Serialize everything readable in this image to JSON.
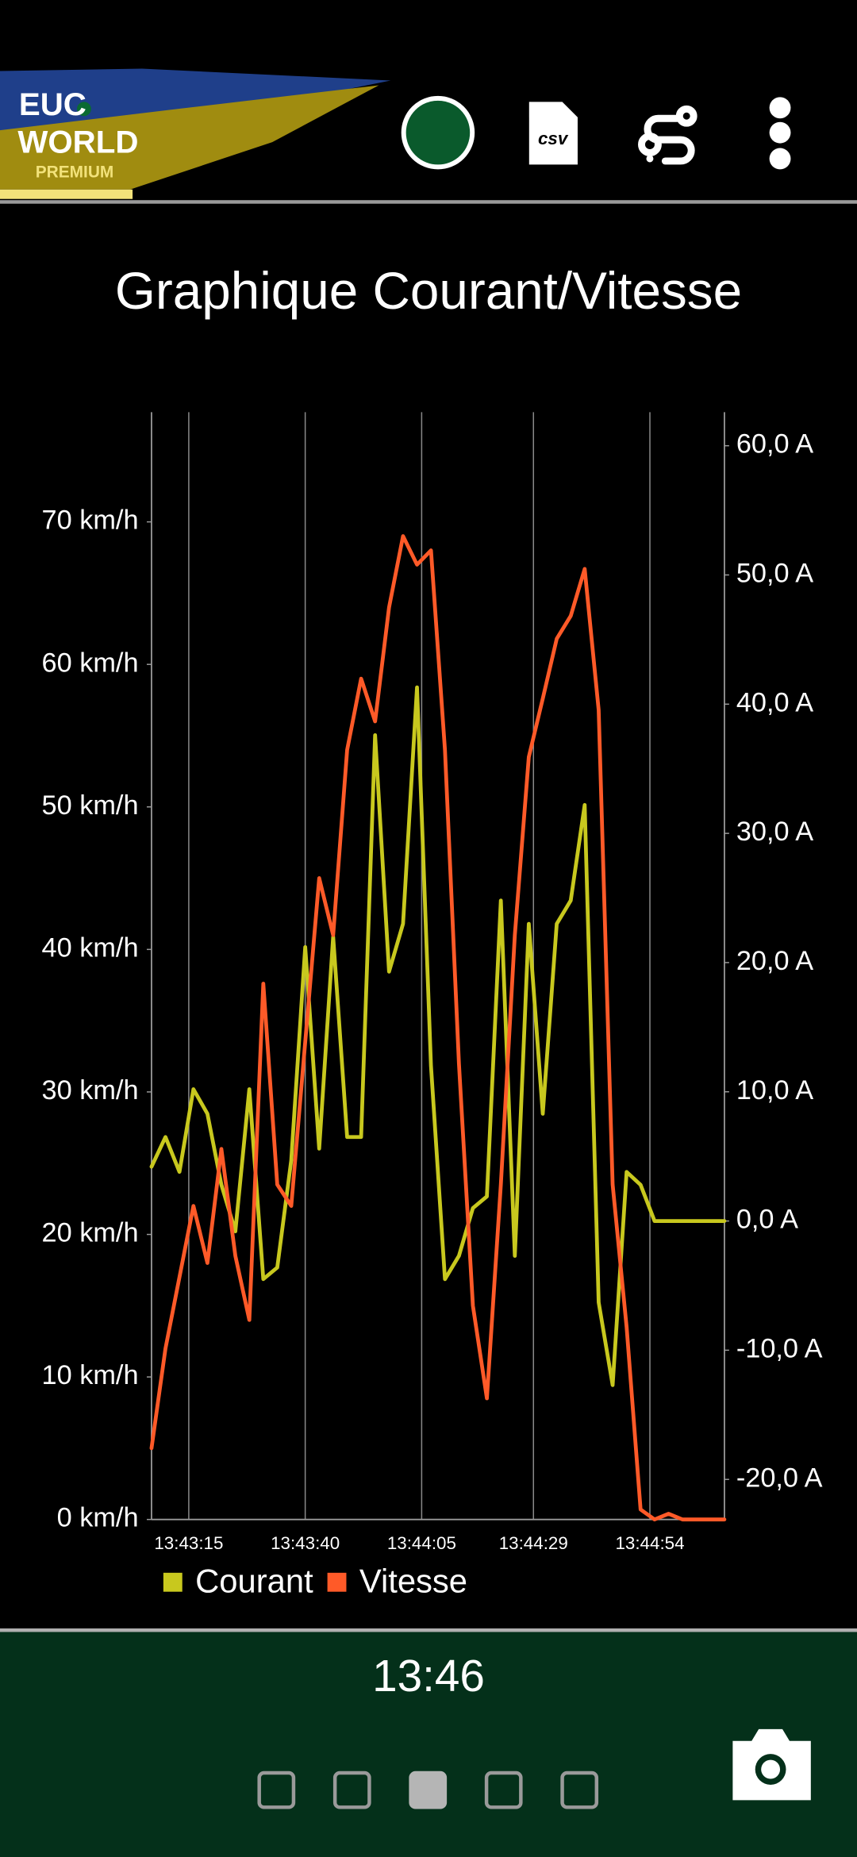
{
  "header": {
    "logo": [
      "EUC",
      "WORLD",
      "PREMIUM"
    ],
    "csv_icon": "csv"
  },
  "chart_data": {
    "type": "line",
    "title": "Graphique Courant/Vitesse",
    "x": [
      "13:43:07",
      "13:43:10",
      "13:43:13",
      "13:43:16",
      "13:43:19",
      "13:43:22",
      "13:43:25",
      "13:43:28",
      "13:43:31",
      "13:43:34",
      "13:43:37",
      "13:43:40",
      "13:43:43",
      "13:43:46",
      "13:43:49",
      "13:43:52",
      "13:43:55",
      "13:43:58",
      "13:44:01",
      "13:44:04",
      "13:44:07",
      "13:44:10",
      "13:44:13",
      "13:44:16",
      "13:44:19",
      "13:44:22",
      "13:44:25",
      "13:44:28",
      "13:44:31",
      "13:44:34",
      "13:44:37",
      "13:44:40",
      "13:44:43",
      "13:44:46",
      "13:44:49",
      "13:44:52",
      "13:44:55",
      "13:44:58",
      "13:45:01",
      "13:45:04",
      "13:45:07",
      "13:45:10"
    ],
    "xlim": [
      "13:43:07",
      "13:45:10"
    ],
    "xticks": [
      "13:43:15",
      "13:43:40",
      "13:44:05",
      "13:44:29",
      "13:44:54"
    ],
    "ylim": [
      0,
      77.7
    ],
    "yticks": [
      {
        "value": 0,
        "label": "0 km/h"
      },
      {
        "value": 10,
        "label": "10 km/h"
      },
      {
        "value": 20,
        "label": "20 km/h"
      },
      {
        "value": 30,
        "label": "30 km/h"
      },
      {
        "value": 40,
        "label": "40 km/h"
      },
      {
        "value": 50,
        "label": "50 km/h"
      },
      {
        "value": 60,
        "label": "60 km/h"
      },
      {
        "value": 70,
        "label": "70 km/h"
      }
    ],
    "y2lim": [
      -23.1,
      62.6
    ],
    "y2ticks": [
      {
        "value": -20,
        "label": "-20,0 A"
      },
      {
        "value": -10,
        "label": "-10,0 A"
      },
      {
        "value": 0,
        "label": "0,0 A"
      },
      {
        "value": 10,
        "label": "10,0 A"
      },
      {
        "value": 20,
        "label": "20,0 A"
      },
      {
        "value": 30,
        "label": "30,0 A"
      },
      {
        "value": 40,
        "label": "40,0 A"
      },
      {
        "value": 50,
        "label": "50,0 A"
      },
      {
        "value": 60,
        "label": "60,0 A"
      }
    ],
    "grid": true,
    "legend": "bottom",
    "series": [
      {
        "name": "Courant",
        "color": "#c8c81e",
        "axis": "y2",
        "values": [
          4.2,
          6.5,
          3.8,
          10.2,
          8.3,
          2.8,
          -0.8,
          10.2,
          -4.5,
          -3.6,
          4.7,
          21.2,
          5.6,
          22,
          6.5,
          6.5,
          37.6,
          19.3,
          23,
          41.3,
          12,
          -4.5,
          -2.7,
          1,
          1.9,
          24.8,
          -2.7,
          23,
          8.3,
          23,
          24.8,
          32.2,
          -6.3,
          -12.7,
          3.8,
          2.8,
          0,
          0,
          0,
          0,
          0,
          0
        ]
      },
      {
        "name": "Vitesse",
        "color": "#ff5a28",
        "values": [
          5,
          12,
          17,
          22,
          18,
          26,
          18.5,
          14,
          37.6,
          23.5,
          22,
          33.5,
          45,
          41,
          54,
          59,
          56,
          64,
          69,
          67,
          68,
          54,
          32,
          15,
          8.5,
          23.5,
          41,
          53.5,
          57.6,
          61.8,
          63.4,
          66.7,
          56.8,
          23.5,
          13.5,
          0.7,
          0,
          0.4,
          0,
          0,
          0,
          0
        ]
      }
    ]
  },
  "footer": {
    "time": "13:46"
  }
}
